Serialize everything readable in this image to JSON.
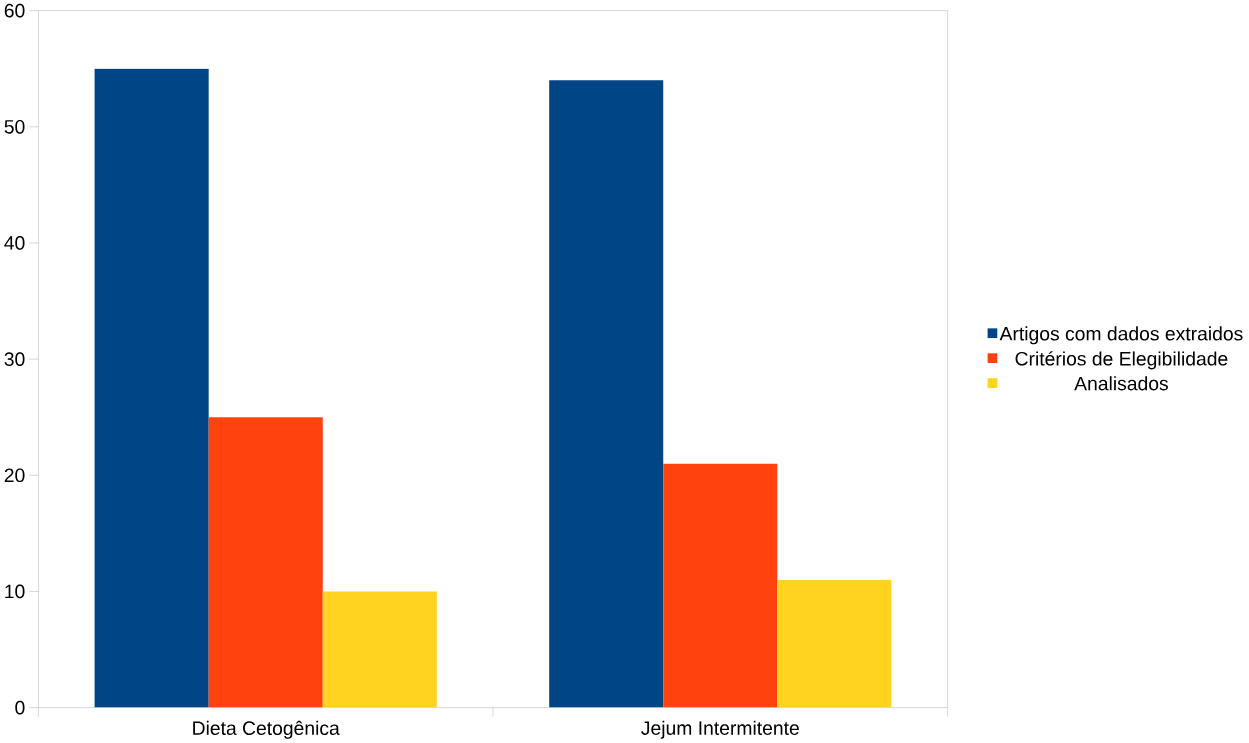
{
  "chart_data": {
    "type": "bar",
    "categories": [
      "Dieta Cetogênica",
      "Jejum Intermitente"
    ],
    "series": [
      {
        "name": "Artigos com dados extraidos",
        "color": "#004586",
        "values": [
          55,
          54
        ]
      },
      {
        "name": "Critérios de Elegibilidade",
        "color": "#ff420e",
        "values": [
          25,
          21
        ]
      },
      {
        "name": "Analisados",
        "color": "#ffd320",
        "values": [
          10,
          11
        ]
      }
    ],
    "ylim": [
      0,
      60
    ],
    "yticks": [
      0,
      10,
      20,
      30,
      40,
      50,
      60
    ],
    "grid": false,
    "legend": "right"
  }
}
